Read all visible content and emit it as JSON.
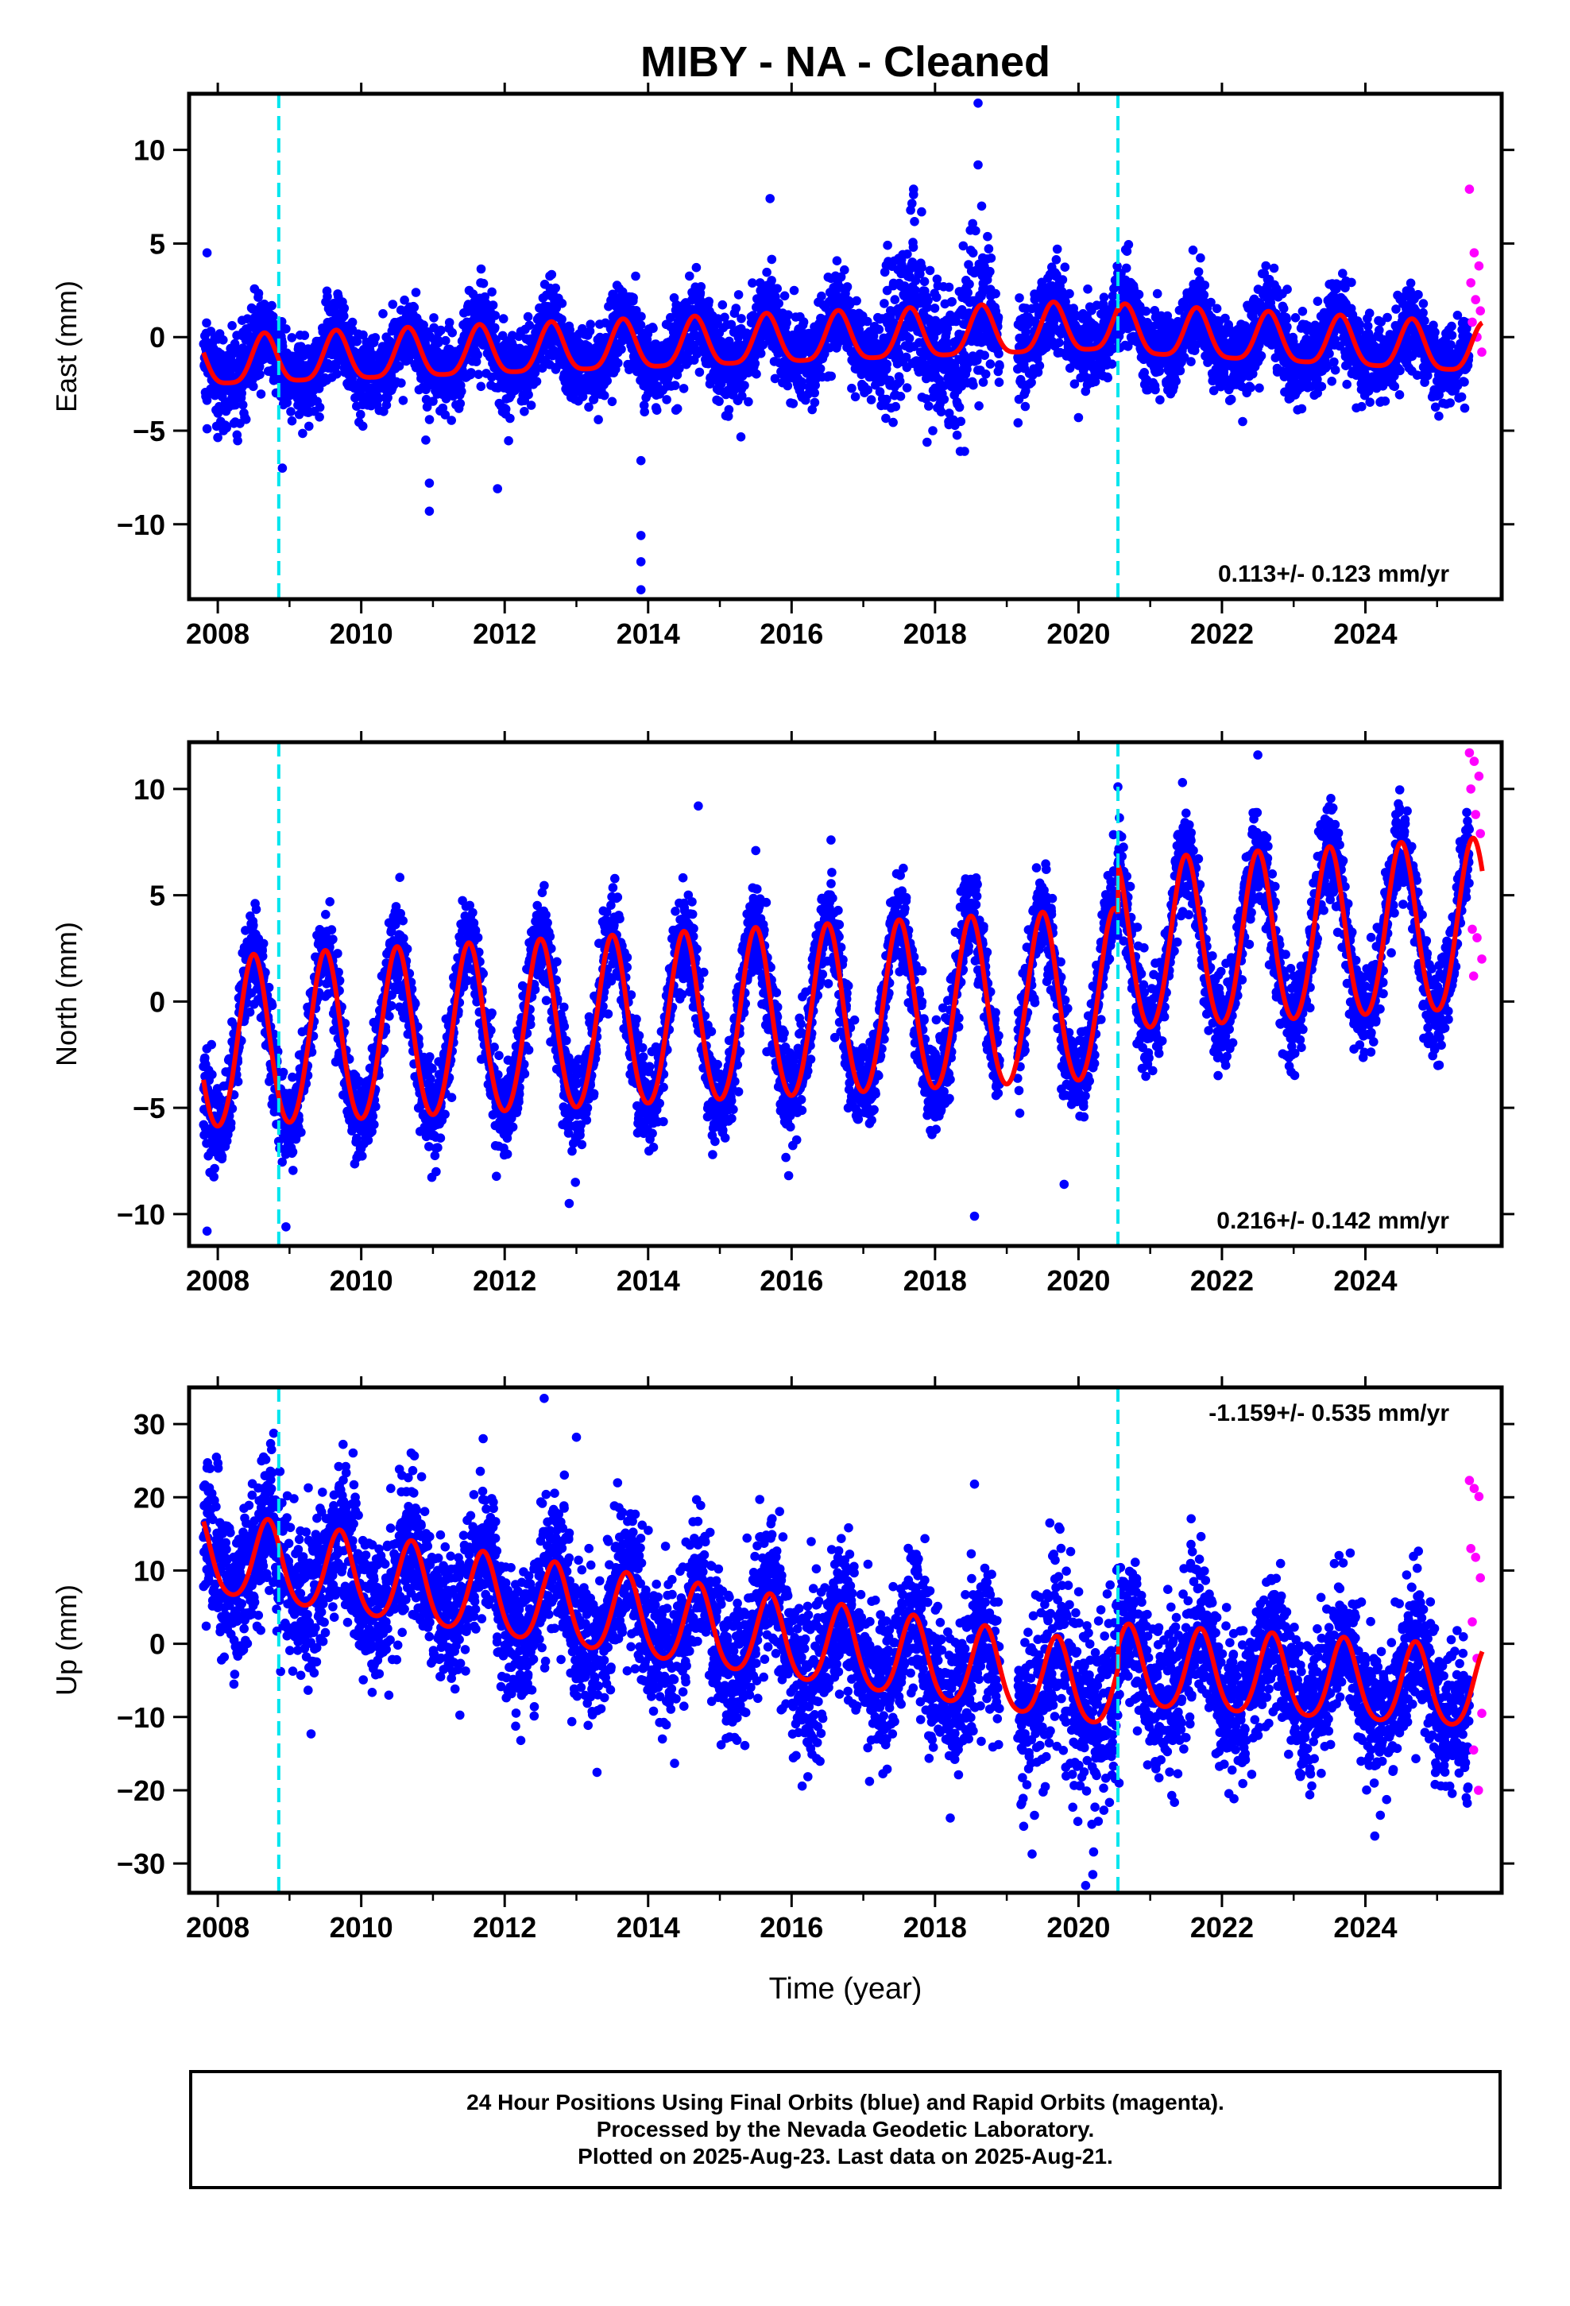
{
  "figure_title": "MIBY  - NA - Cleaned",
  "colors": {
    "final_orbits": "#0000ff",
    "rapid_orbits": "#ff00ff",
    "model": "#ff0000",
    "offset_lines": "#00e5ee",
    "frame": "#000000"
  },
  "offset_epochs": [
    2008.85,
    2020.55
  ],
  "xlabel": "Time (year)",
  "footer": {
    "line1": "24 Hour Positions Using Final Orbits (blue) and Rapid Orbits (magenta).",
    "line2": "Processed by the Nevada Geodetic Laboratory.",
    "line3": "Plotted on 2025-Aug-23. Last data on 2025-Aug-21."
  },
  "chart_data": [
    {
      "type": "scatter",
      "component": "East",
      "ylabel": "East (mm)",
      "xlim": [
        2007.6,
        2025.9
      ],
      "ylim": [
        -14,
        13
      ],
      "xticks": [
        2008,
        2010,
        2012,
        2014,
        2016,
        2018,
        2020,
        2022,
        2024
      ],
      "yticks": [
        -10,
        -5,
        0,
        5,
        10
      ],
      "rate_label": "0.113+/- 0.123 mm/yr",
      "rate_label_position": "bottom-right",
      "data_start": 2007.8,
      "final_end": 2025.45,
      "rapid_range": [
        2025.45,
        2025.63
      ],
      "gap": [
        2018.9,
        2019.15
      ],
      "model": {
        "trend_segments": [
          {
            "from": 2007.8,
            "to": 2020.55,
            "start_value": -1.5,
            "rate": 0.15
          },
          {
            "from": 2020.55,
            "to": 2025.63,
            "start_value": 0.2,
            "rate": -0.2
          }
        ],
        "annual_amplitude": 1.3,
        "annual_peak_phase": 0.65,
        "semiannual_amplitude": 0.3
      },
      "scatter_sigma": 1.1,
      "outliers": [
        {
          "x": 2008.9,
          "y": -7.0
        },
        {
          "x": 2010.95,
          "y": -7.8
        },
        {
          "x": 2010.95,
          "y": -9.3
        },
        {
          "x": 2010.9,
          "y": -5.5
        },
        {
          "x": 2011.9,
          "y": -8.1
        },
        {
          "x": 2013.9,
          "y": -6.6
        },
        {
          "x": 2013.9,
          "y": -10.6
        },
        {
          "x": 2013.9,
          "y": -12.0
        },
        {
          "x": 2013.9,
          "y": -13.5
        },
        {
          "x": 2015.7,
          "y": 7.4
        },
        {
          "x": 2017.7,
          "y": 7.9
        },
        {
          "x": 2018.6,
          "y": 12.5
        },
        {
          "x": 2018.6,
          "y": 9.2
        },
        {
          "x": 2018.65,
          "y": 7.0
        },
        {
          "x": 2020.0,
          "y": -4.3
        },
        {
          "x": 2007.85,
          "y": 4.5
        },
        {
          "x": 2007.85,
          "y": -4.9
        }
      ],
      "rapid_points": [
        7.9,
        4.5,
        3.8,
        2.9,
        2.0,
        1.4,
        0.8,
        0.0,
        -0.8
      ]
    },
    {
      "type": "scatter",
      "component": "North",
      "ylabel": "North (mm)",
      "xlim": [
        2007.6,
        2025.9
      ],
      "ylim": [
        -11.5,
        12.2
      ],
      "xticks": [
        2008,
        2010,
        2012,
        2014,
        2016,
        2018,
        2020,
        2022,
        2024
      ],
      "yticks": [
        -10,
        -5,
        0,
        5,
        10
      ],
      "rate_label": "0.216+/- 0.142 mm/yr",
      "rate_label_position": "bottom-right",
      "data_start": 2007.8,
      "final_end": 2025.45,
      "rapid_range": [
        2025.45,
        2025.63
      ],
      "gap": [
        2018.9,
        2019.15
      ],
      "model": {
        "trend_segments": [
          {
            "from": 2007.8,
            "to": 2020.55,
            "start_value": -2.2,
            "rate": 0.18
          },
          {
            "from": 2020.55,
            "to": 2025.63,
            "start_value": 2.4,
            "rate": 0.2
          }
        ],
        "annual_amplitude": 4.0,
        "annual_peak_phase": 0.5,
        "semiannual_amplitude": 0.3
      },
      "scatter_sigma": 1.1,
      "outliers": [
        {
          "x": 2007.85,
          "y": -10.8
        },
        {
          "x": 2008.95,
          "y": -10.6
        },
        {
          "x": 2012.9,
          "y": -9.5
        },
        {
          "x": 2014.7,
          "y": 9.2
        },
        {
          "x": 2018.55,
          "y": -10.1
        },
        {
          "x": 2019.8,
          "y": -8.6
        },
        {
          "x": 2020.55,
          "y": 10.1
        },
        {
          "x": 2022.5,
          "y": 11.6
        },
        {
          "x": 2021.45,
          "y": 10.3
        },
        {
          "x": 2015.5,
          "y": 7.1
        },
        {
          "x": 2016.55,
          "y": 7.6
        }
      ],
      "rapid_points": [
        11.7,
        11.3,
        10.6,
        10.0,
        8.8,
        7.9,
        3.4,
        3.0,
        2.0,
        1.2
      ]
    },
    {
      "type": "scatter",
      "component": "Up",
      "ylabel": "Up (mm)",
      "xlim": [
        2007.6,
        2025.9
      ],
      "ylim": [
        -34,
        35
      ],
      "xticks": [
        2008,
        2010,
        2012,
        2014,
        2016,
        2018,
        2020,
        2022,
        2024
      ],
      "yticks": [
        -30,
        -20,
        -10,
        0,
        10,
        20,
        30
      ],
      "rate_label": "-1.159+/- 0.535 mm/yr",
      "rate_label_position": "top-right",
      "data_start": 2007.8,
      "final_end": 2025.45,
      "rapid_range": [
        2025.45,
        2025.63
      ],
      "gap": [
        2018.9,
        2019.15
      ],
      "model": {
        "trend_segments": [
          {
            "from": 2007.8,
            "to": 2020.55,
            "start_value": 12.0,
            "rate": -1.45
          },
          {
            "from": 2020.55,
            "to": 2025.63,
            "start_value": -3.5,
            "rate": -0.6
          }
        ],
        "annual_amplitude": 5.5,
        "annual_peak_phase": 0.7,
        "semiannual_amplitude": 0.8
      },
      "scatter_sigma": 5.0,
      "outliers": [
        {
          "x": 2012.55,
          "y": 33.5
        },
        {
          "x": 2013.0,
          "y": 28.2
        },
        {
          "x": 2011.7,
          "y": 28.0
        },
        {
          "x": 2009.3,
          "y": -12.3
        },
        {
          "x": 2018.55,
          "y": 21.8
        },
        {
          "x": 2020.1,
          "y": -33.0
        },
        {
          "x": 2020.2,
          "y": -31.5
        },
        {
          "x": 2007.85,
          "y": 24.0
        },
        {
          "x": 2008.75,
          "y": 26.5
        }
      ],
      "rapid_points": [
        22.3,
        21.2,
        20.1,
        13.0,
        11.8,
        9.0,
        3.0,
        -2.0,
        -9.5,
        -14.5,
        -20.0
      ]
    }
  ]
}
